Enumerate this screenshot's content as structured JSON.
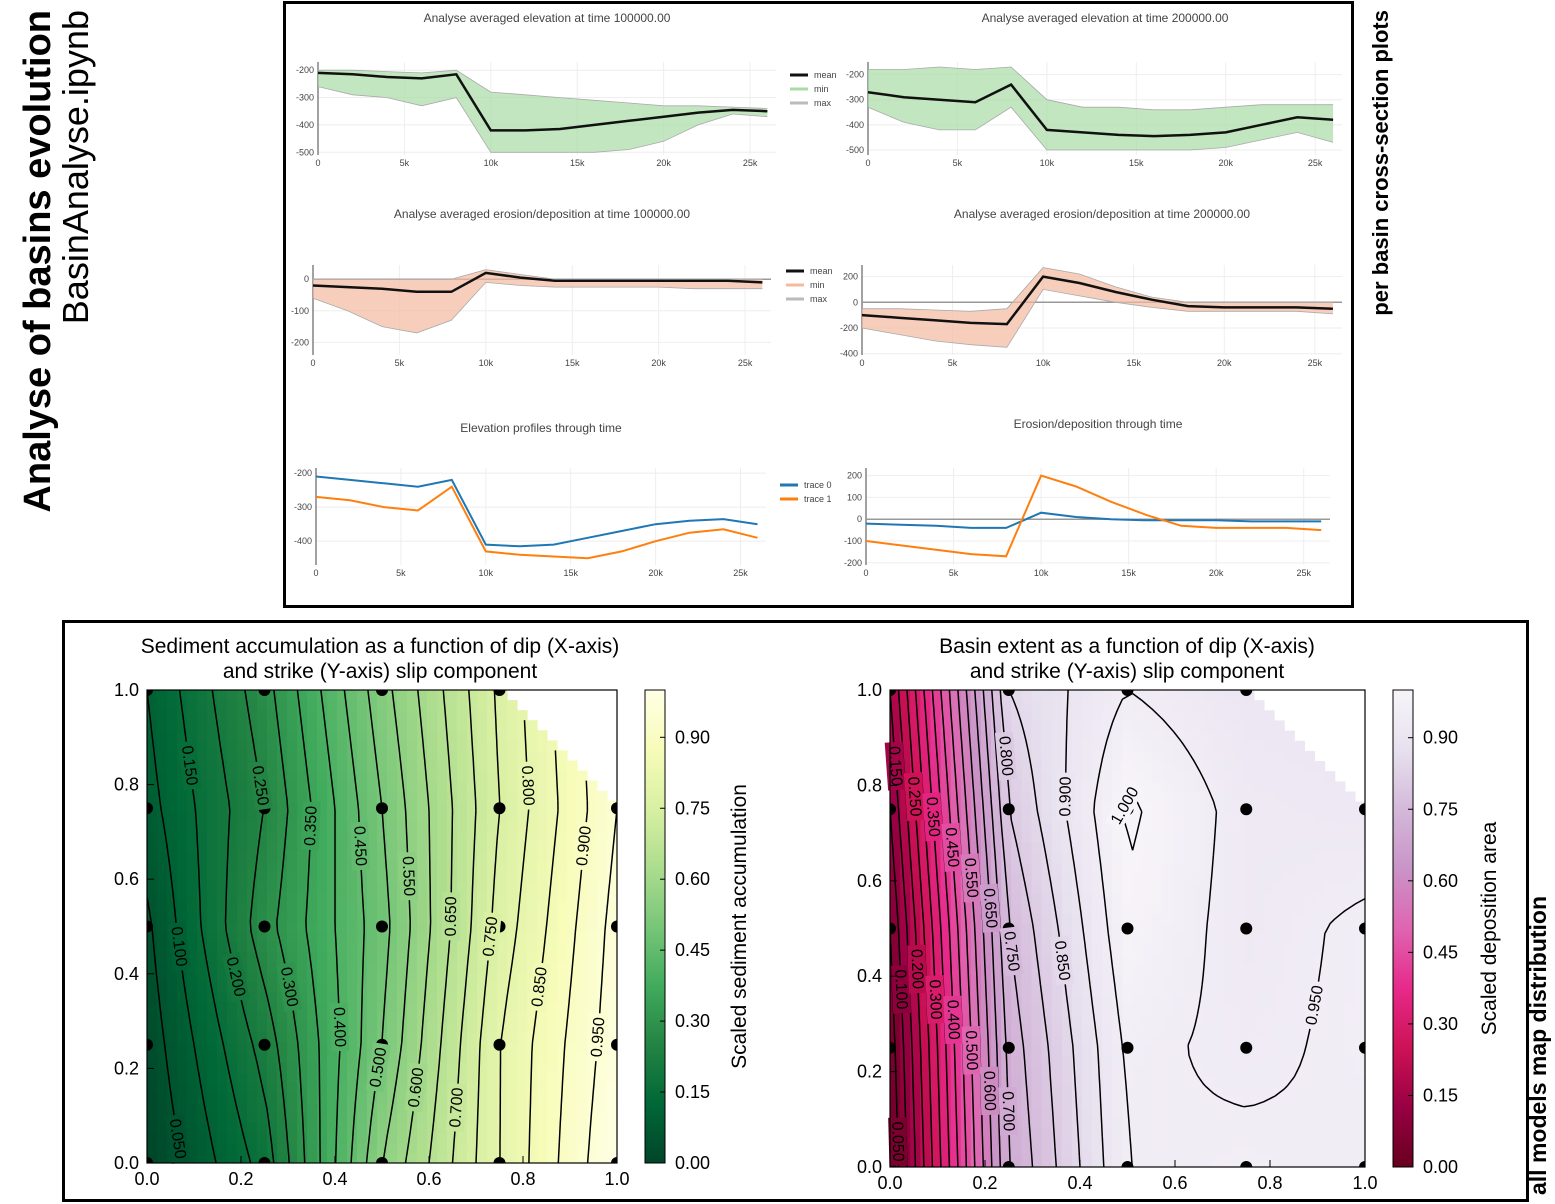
{
  "labels": {
    "title": "Analyse of basins evolution",
    "notebook": "BasinAnalyse.ipynb",
    "top_section": "per basin cross-section plots",
    "bottom_section": "all models map distribution"
  },
  "chart_data": [
    {
      "type": "line",
      "title": "Analyse averaged elevation at time 100000.00",
      "legend": true,
      "zeroline": false,
      "x": [
        0,
        2000,
        4000,
        6000,
        8000,
        10000,
        12000,
        14000,
        16000,
        18000,
        20000,
        22000,
        24000,
        26000
      ],
      "xlim": [
        0,
        26500
      ],
      "xticks": [
        0,
        {
          "value": 5000,
          "label": "5k"
        },
        {
          "value": 10000,
          "label": "10k"
        },
        {
          "value": 15000,
          "label": "15k"
        },
        {
          "value": 20000,
          "label": "20k"
        },
        {
          "value": 25000,
          "label": "25k"
        }
      ],
      "ylim": [
        -510,
        -170
      ],
      "yticks": [
        -200,
        -300,
        -400,
        -500
      ],
      "series": [
        {
          "name": "mean",
          "color": "#111111",
          "values": [
            -210,
            -215,
            -225,
            -230,
            -215,
            -420,
            -420,
            -415,
            -400,
            -385,
            -370,
            -355,
            -345,
            -350
          ]
        },
        {
          "name": "min",
          "color": "#a8dca4",
          "fill_to_next": true,
          "values": [
            -260,
            -290,
            -300,
            -330,
            -300,
            -500,
            -500,
            -500,
            -500,
            -490,
            -460,
            -400,
            -360,
            -370
          ]
        },
        {
          "name": "max",
          "color": "#bbbbbb",
          "values": [
            -200,
            -200,
            -205,
            -210,
            -200,
            -280,
            -290,
            -300,
            -310,
            -320,
            -330,
            -330,
            -335,
            -340
          ]
        }
      ]
    },
    {
      "type": "line",
      "title": "Analyse averaged elevation at time 200000.00",
      "legend": false,
      "zeroline": false,
      "x": [
        0,
        2000,
        4000,
        6000,
        8000,
        10000,
        12000,
        14000,
        16000,
        18000,
        20000,
        22000,
        24000,
        26000
      ],
      "xlim": [
        0,
        26500
      ],
      "xticks": [
        0,
        {
          "value": 5000,
          "label": "5k"
        },
        {
          "value": 10000,
          "label": "10k"
        },
        {
          "value": 15000,
          "label": "15k"
        },
        {
          "value": 20000,
          "label": "20k"
        },
        {
          "value": 25000,
          "label": "25k"
        }
      ],
      "ylim": [
        -520,
        -150
      ],
      "yticks": [
        -200,
        -300,
        -400,
        -500
      ],
      "series": [
        {
          "name": "mean",
          "color": "#111111",
          "values": [
            -270,
            -290,
            -300,
            -310,
            -240,
            -420,
            -430,
            -440,
            -445,
            -440,
            -430,
            -400,
            -370,
            -380
          ]
        },
        {
          "name": "min",
          "color": "#a8dca4",
          "fill_to_next": true,
          "values": [
            -330,
            -390,
            -420,
            -420,
            -330,
            -500,
            -500,
            -500,
            -500,
            -500,
            -490,
            -460,
            -430,
            -470
          ]
        },
        {
          "name": "max",
          "color": "#bbbbbb",
          "values": [
            -180,
            -180,
            -170,
            -180,
            -170,
            -300,
            -330,
            -330,
            -340,
            -340,
            -330,
            -320,
            -320,
            -320
          ]
        }
      ]
    },
    {
      "type": "line",
      "title": "Analyse averaged erosion/deposition at time 100000.00",
      "legend": true,
      "zeroline": true,
      "x": [
        0,
        2000,
        4000,
        6000,
        8000,
        10000,
        12000,
        14000,
        16000,
        18000,
        20000,
        22000,
        24000,
        26000
      ],
      "xlim": [
        0,
        26500
      ],
      "xticks": [
        0,
        {
          "value": 5000,
          "label": "5k"
        },
        {
          "value": 10000,
          "label": "10k"
        },
        {
          "value": 15000,
          "label": "15k"
        },
        {
          "value": 20000,
          "label": "20k"
        },
        {
          "value": 25000,
          "label": "25k"
        }
      ],
      "ylim": [
        -240,
        45
      ],
      "yticks": [
        0,
        -100,
        -200
      ],
      "series": [
        {
          "name": "mean",
          "color": "#111111",
          "values": [
            -20,
            -25,
            -30,
            -40,
            -40,
            20,
            5,
            -5,
            -5,
            -5,
            -5,
            -5,
            -5,
            -10
          ]
        },
        {
          "name": "min",
          "color": "#f4b9a0",
          "fill_to_next": true,
          "values": [
            -60,
            -100,
            -150,
            -170,
            -130,
            -10,
            -20,
            -25,
            -25,
            -25,
            -25,
            -30,
            -30,
            -30
          ]
        },
        {
          "name": "max",
          "color": "#bbbbbb",
          "values": [
            0,
            0,
            0,
            0,
            0,
            30,
            15,
            0,
            0,
            0,
            0,
            0,
            0,
            0
          ]
        }
      ]
    },
    {
      "type": "line",
      "title": "Analyse averaged erosion/deposition at time 200000.00",
      "legend": false,
      "zeroline": true,
      "x": [
        0,
        2000,
        4000,
        6000,
        8000,
        10000,
        12000,
        14000,
        16000,
        18000,
        20000,
        22000,
        24000,
        26000
      ],
      "xlim": [
        0,
        26500
      ],
      "xticks": [
        0,
        {
          "value": 5000,
          "label": "5k"
        },
        {
          "value": 10000,
          "label": "10k"
        },
        {
          "value": 15000,
          "label": "15k"
        },
        {
          "value": 20000,
          "label": "20k"
        },
        {
          "value": 25000,
          "label": "25k"
        }
      ],
      "ylim": [
        -410,
        290
      ],
      "yticks": [
        200,
        0,
        -200,
        -400
      ],
      "series": [
        {
          "name": "mean",
          "color": "#111111",
          "values": [
            -100,
            -120,
            -140,
            -160,
            -170,
            200,
            150,
            80,
            20,
            -30,
            -40,
            -40,
            -40,
            -50
          ]
        },
        {
          "name": "min",
          "color": "#f4b9a0",
          "fill_to_next": true,
          "values": [
            -200,
            -250,
            -300,
            -330,
            -350,
            100,
            50,
            0,
            -40,
            -70,
            -70,
            -70,
            -70,
            -90
          ]
        },
        {
          "name": "max",
          "color": "#bbbbbb",
          "values": [
            -50,
            -50,
            -60,
            -70,
            -50,
            270,
            220,
            120,
            40,
            0,
            0,
            0,
            0,
            0
          ]
        }
      ]
    },
    {
      "type": "line",
      "title": "Elevation profiles through time",
      "legend": true,
      "zeroline": false,
      "x": [
        0,
        2000,
        4000,
        6000,
        8000,
        10000,
        12000,
        14000,
        16000,
        18000,
        20000,
        22000,
        24000,
        26000
      ],
      "xlim": [
        0,
        26500
      ],
      "xticks": [
        0,
        {
          "value": 5000,
          "label": "5k"
        },
        {
          "value": 10000,
          "label": "10k"
        },
        {
          "value": 15000,
          "label": "15k"
        },
        {
          "value": 20000,
          "label": "20k"
        },
        {
          "value": 25000,
          "label": "25k"
        }
      ],
      "ylim": [
        -470,
        -185
      ],
      "yticks": [
        -200,
        -300,
        -400
      ],
      "series": [
        {
          "name": "trace 0",
          "color": "#1f77b4",
          "values": [
            -210,
            -220,
            -230,
            -240,
            -220,
            -410,
            -415,
            -410,
            -390,
            -370,
            -350,
            -340,
            -335,
            -350
          ]
        },
        {
          "name": "trace 1",
          "color": "#ff7f0e",
          "values": [
            -270,
            -280,
            -300,
            -310,
            -240,
            -430,
            -440,
            -445,
            -450,
            -430,
            -400,
            -375,
            -365,
            -390
          ]
        }
      ]
    },
    {
      "type": "line",
      "title": "Erosion/deposition through time",
      "legend": false,
      "zeroline": true,
      "x": [
        0,
        2000,
        4000,
        6000,
        8000,
        10000,
        12000,
        14000,
        16000,
        18000,
        20000,
        22000,
        24000,
        26000
      ],
      "xlim": [
        0,
        26500
      ],
      "xticks": [
        0,
        {
          "value": 5000,
          "label": "5k"
        },
        {
          "value": 10000,
          "label": "10k"
        },
        {
          "value": 15000,
          "label": "15k"
        },
        {
          "value": 20000,
          "label": "20k"
        },
        {
          "value": 25000,
          "label": "25k"
        }
      ],
      "ylim": [
        -210,
        235
      ],
      "yticks": [
        200,
        100,
        0,
        -100,
        -200
      ],
      "series": [
        {
          "name": "trace 0",
          "color": "#1f77b4",
          "values": [
            -20,
            -25,
            -30,
            -40,
            -40,
            30,
            10,
            0,
            -5,
            -5,
            -5,
            -10,
            -10,
            -10
          ]
        },
        {
          "name": "trace 1",
          "color": "#ff7f0e",
          "values": [
            -100,
            -120,
            -140,
            -160,
            -170,
            200,
            150,
            80,
            20,
            -30,
            -40,
            -40,
            -40,
            -50
          ]
        }
      ]
    },
    {
      "type": "contour",
      "title": "Sediment accumulation as a function of dip (X-axis)\nand strike (Y-axis) slip component",
      "x": [
        0,
        0.25,
        0.5,
        0.75,
        1
      ],
      "y": [
        0,
        0.25,
        0.5,
        0.75,
        1
      ],
      "z": [
        [
          0.0,
          0.17,
          0.55,
          0.8,
          1.0
        ],
        [
          0.02,
          0.22,
          0.5,
          0.8,
          0.98
        ],
        [
          0.04,
          0.28,
          0.48,
          0.77,
          0.97
        ],
        [
          0.08,
          0.25,
          0.5,
          0.75,
          0.95
        ],
        [
          0.1,
          0.28,
          0.53,
          0.76,
          null
        ]
      ],
      "xlim": [
        0,
        1
      ],
      "ylim": [
        0,
        1
      ],
      "xticks": [
        {
          "value": 0,
          "label": "0.0"
        },
        0.2,
        0.4,
        0.6,
        0.8,
        {
          "value": 1,
          "label": "1.0"
        }
      ],
      "yticks": [
        {
          "value": 0,
          "label": "0.0"
        },
        0.2,
        0.4,
        0.6,
        0.8,
        {
          "value": 1,
          "label": "1.0"
        }
      ],
      "levels": [
        {
          "value": 0.05,
          "label": "0.050"
        },
        {
          "value": 0.1,
          "label": "0.100"
        },
        {
          "value": 0.15,
          "label": "0.150"
        },
        {
          "value": 0.2,
          "label": "0.200"
        },
        {
          "value": 0.25,
          "label": "0.250"
        },
        {
          "value": 0.3,
          "label": "0.300"
        },
        {
          "value": 0.35,
          "label": "0.350"
        },
        {
          "value": 0.4,
          "label": "0.400"
        },
        {
          "value": 0.45,
          "label": "0.450"
        },
        {
          "value": 0.5,
          "label": "0.500"
        },
        {
          "value": 0.55,
          "label": "0.550"
        },
        {
          "value": 0.6,
          "label": "0.600"
        },
        {
          "value": 0.65,
          "label": "0.650"
        },
        {
          "value": 0.7,
          "label": "0.700"
        },
        {
          "value": 0.75,
          "label": "0.750"
        },
        {
          "value": 0.8,
          "label": "0.800"
        },
        {
          "value": 0.85,
          "label": "0.850"
        },
        {
          "value": 0.9,
          "label": "0.900"
        },
        {
          "value": 0.95,
          "label": "0.950"
        }
      ],
      "colormap": [
        "#004529",
        "#006837",
        "#238443",
        "#41ab5d",
        "#78c679",
        "#addd8e",
        "#d9f0a3",
        "#f7fcb9",
        "#ffffe5"
      ],
      "colorbar": {
        "label": "Scaled sediment accumulation",
        "lim": [
          0,
          1
        ],
        "ticks": [
          {
            "value": 0,
            "label": "0.00"
          },
          0.15,
          {
            "value": 0.3,
            "label": "0.30"
          },
          0.45,
          {
            "value": 0.6,
            "label": "0.60"
          },
          0.75,
          {
            "value": 0.9,
            "label": "0.90"
          }
        ]
      }
    },
    {
      "type": "contour",
      "title": "Basin extent as a function of dip (X-axis)\nand strike (Y-axis) slip component",
      "x": [
        0,
        0.25,
        0.5,
        0.75,
        1
      ],
      "y": [
        0,
        0.25,
        0.5,
        0.75,
        1
      ],
      "z": [
        [
          0.0,
          0.7,
          0.95,
          0.96,
          0.95
        ],
        [
          0.02,
          0.72,
          0.96,
          0.94,
          0.96
        ],
        [
          0.05,
          0.75,
          0.99,
          0.93,
          0.96
        ],
        [
          0.1,
          0.8,
          1.01,
          0.93,
          0.92
        ],
        [
          0.15,
          0.85,
          0.95,
          0.91,
          null
        ]
      ],
      "xlim": [
        0,
        1
      ],
      "ylim": [
        0,
        1
      ],
      "xticks": [
        {
          "value": 0,
          "label": "0.0"
        },
        0.2,
        0.4,
        0.6,
        0.8,
        {
          "value": 1,
          "label": "1.0"
        }
      ],
      "yticks": [
        {
          "value": 0,
          "label": "0.0"
        },
        0.2,
        0.4,
        0.6,
        0.8,
        {
          "value": 1,
          "label": "1.0"
        }
      ],
      "levels": [
        {
          "value": 0.05,
          "label": "0.050"
        },
        {
          "value": 0.1,
          "label": "0.100"
        },
        {
          "value": 0.15,
          "label": "0.150"
        },
        {
          "value": 0.2,
          "label": "0.200"
        },
        {
          "value": 0.25,
          "label": "0.250"
        },
        {
          "value": 0.3,
          "label": "0.300"
        },
        {
          "value": 0.35,
          "label": "0.350"
        },
        {
          "value": 0.4,
          "label": "0.400"
        },
        {
          "value": 0.45,
          "label": "0.450"
        },
        {
          "value": 0.5,
          "label": "0.500"
        },
        {
          "value": 0.55,
          "label": "0.550"
        },
        {
          "value": 0.6,
          "label": "0.600"
        },
        {
          "value": 0.65,
          "label": "0.650"
        },
        {
          "value": 0.7,
          "label": "0.700"
        },
        {
          "value": 0.75,
          "label": "0.750"
        },
        {
          "value": 0.8,
          "label": "0.800"
        },
        {
          "value": 0.85,
          "label": "0.850"
        },
        {
          "value": 0.9,
          "label": "0.900"
        },
        {
          "value": 0.95,
          "label": "0.950"
        },
        {
          "value": 1,
          "label": "1.000"
        }
      ],
      "colormap": [
        "#67001f",
        "#980043",
        "#ce1256",
        "#e7298a",
        "#df65b0",
        "#c994c7",
        "#d4b9da",
        "#e7e1ef",
        "#f7f4f9"
      ],
      "colorbar": {
        "label": "Scaled deposition area",
        "lim": [
          0,
          1
        ],
        "ticks": [
          {
            "value": 0,
            "label": "0.00"
          },
          0.15,
          {
            "value": 0.3,
            "label": "0.30"
          },
          0.45,
          {
            "value": 0.6,
            "label": "0.60"
          },
          0.75,
          {
            "value": 0.9,
            "label": "0.90"
          }
        ]
      }
    }
  ]
}
